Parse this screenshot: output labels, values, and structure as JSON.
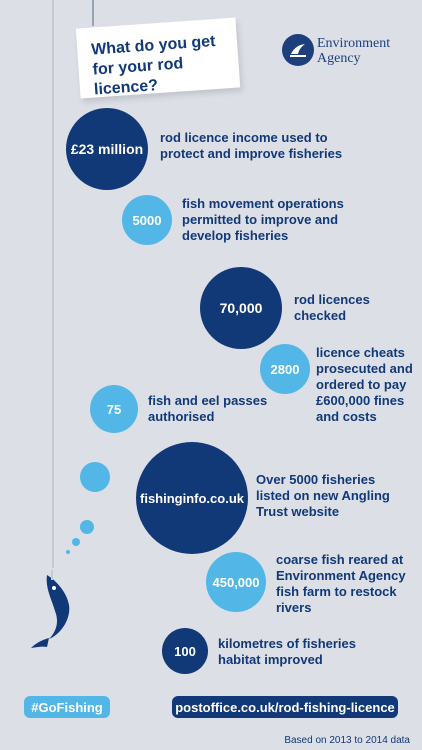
{
  "header": {
    "title": "What do you get for your rod licence?",
    "logo_line1": "Environment",
    "logo_line2": "Agency"
  },
  "facts": [
    {
      "value": "£23 million",
      "text": "rod licence income used to protect and improve fisheries"
    },
    {
      "value": "5000",
      "text": "fish movement operations permitted to improve and develop fisheries"
    },
    {
      "value": "70,000",
      "text": "rod licences checked"
    },
    {
      "value": "2800",
      "text": "licence cheats prosecuted and ordered to pay £600,000 fines and costs"
    },
    {
      "value": "75",
      "text": "fish and eel passes authorised"
    },
    {
      "value": "fishinginfo.co.uk",
      "text": "Over 5000 fisheries listed on new Angling Trust website"
    },
    {
      "value": "450,000",
      "text": "coarse fish reared at Environment Agency fish farm to restock rivers"
    },
    {
      "value": "100",
      "text": "kilometres of fisheries habitat improved"
    }
  ],
  "footer": {
    "hashtag": "#GoFishing",
    "url": "postoffice.co.uk/rod-fishing-licence",
    "note": "Based on 2013 to 2014 data"
  },
  "icons": [
    "fish-icon",
    "environment-agency-logo"
  ],
  "colors": {
    "dark_blue": "#113978",
    "light_blue": "#52b7e6",
    "background": "#dcdfe6"
  }
}
